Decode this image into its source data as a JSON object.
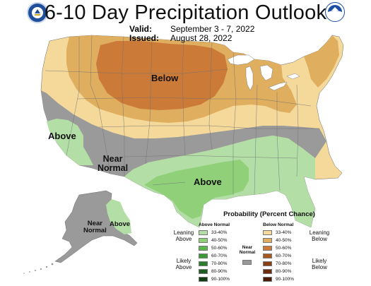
{
  "title": "6-10 Day Precipitation Outlook",
  "valid": {
    "label": "Valid:",
    "value": "September 3 - 7, 2022"
  },
  "issued": {
    "label": "Issued:",
    "value": "August 28, 2022"
  },
  "map_labels": {
    "below": "Below",
    "above_west": "Above",
    "near_normal_line1": "Near",
    "near_normal_line2": "Normal",
    "above_south": "Above",
    "alaska_near_line1": "Near",
    "alaska_near_line2": "Normal",
    "alaska_above": "Above"
  },
  "legend": {
    "title": "Probability (Percent Chance)",
    "above_header": "Above Normal",
    "below_header": "Below Normal",
    "near_header_line1": "Near",
    "near_header_line2": "Normal",
    "leaning_above_1": "Leaning",
    "leaning_above_2": "Above",
    "likely_above_1": "Likely",
    "likely_above_2": "Above",
    "leaning_below_1": "Leaning",
    "leaning_below_2": "Below",
    "likely_below_1": "Likely",
    "likely_below_2": "Below",
    "above_items": [
      {
        "label": "33-40%",
        "color": "#b3dfa6"
      },
      {
        "label": "40-50%",
        "color": "#8fd079"
      },
      {
        "label": "50-60%",
        "color": "#5cb84a"
      },
      {
        "label": "60-70%",
        "color": "#3a9b36"
      },
      {
        "label": "70-80%",
        "color": "#2b7d2a"
      },
      {
        "label": "80-90%",
        "color": "#1d5e1e"
      },
      {
        "label": "90-100%",
        "color": "#103d12"
      }
    ],
    "below_items": [
      {
        "label": "33-40%",
        "color": "#f5d99a"
      },
      {
        "label": "40-50%",
        "color": "#dfae5e"
      },
      {
        "label": "50-60%",
        "color": "#cc7a38"
      },
      {
        "label": "60-70%",
        "color": "#a8571e"
      },
      {
        "label": "70-80%",
        "color": "#8a3f12"
      },
      {
        "label": "80-90%",
        "color": "#6b2c0c"
      },
      {
        "label": "90-100%",
        "color": "#4a1c07"
      }
    ],
    "near_color": "#999999"
  },
  "colors": {
    "below_33_40": "#f5d99a",
    "below_40_50": "#dfae5e",
    "below_50_60": "#cc7a38",
    "near_normal": "#9a9a9a",
    "above_33_40": "#b3dfa6",
    "above_40_50": "#8fd079",
    "lakes": "#ffffff"
  },
  "logos": {
    "left": "doc-seal-icon",
    "right": "noaa-logo-icon"
  }
}
